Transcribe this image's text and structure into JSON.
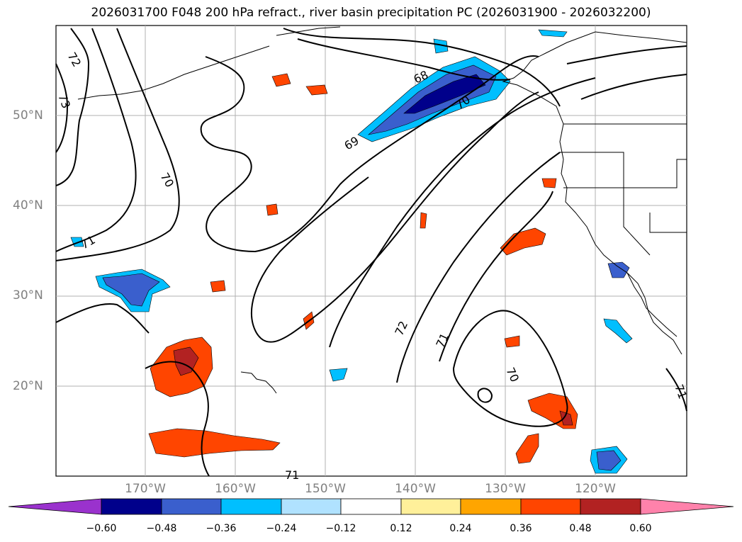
{
  "title": "2026031700 F048 200 hPa refract., river basin precipitation PC (2026031900 - 2026032200)",
  "lat_labels": [
    "50°N",
    "40°N",
    "30°N",
    "20°N"
  ],
  "lon_labels": [
    "170°W",
    "160°W",
    "150°W",
    "140°W",
    "130°W",
    "120°W"
  ],
  "contour_labels": [
    "72",
    "73",
    "70",
    "71",
    "68",
    "69",
    "70",
    "72",
    "71",
    "70",
    "71",
    "71"
  ],
  "colorbar": {
    "ticks": [
      "−0.60",
      "−0.48",
      "−0.36",
      "−0.24",
      "−0.12",
      "0.12",
      "0.24",
      "0.36",
      "0.48",
      "0.60"
    ],
    "colors": [
      "#9a32cd",
      "#00008b",
      "#3a5fcd",
      "#00bfff",
      "#b0e2ff",
      "#ffffff",
      "#fff09a",
      "#ffa500",
      "#ff4500",
      "#b22222",
      "#ff82ab"
    ]
  },
  "map_colors": {
    "contour": "#000000",
    "coast": "#000000",
    "grid": "#b0b0b0"
  }
}
